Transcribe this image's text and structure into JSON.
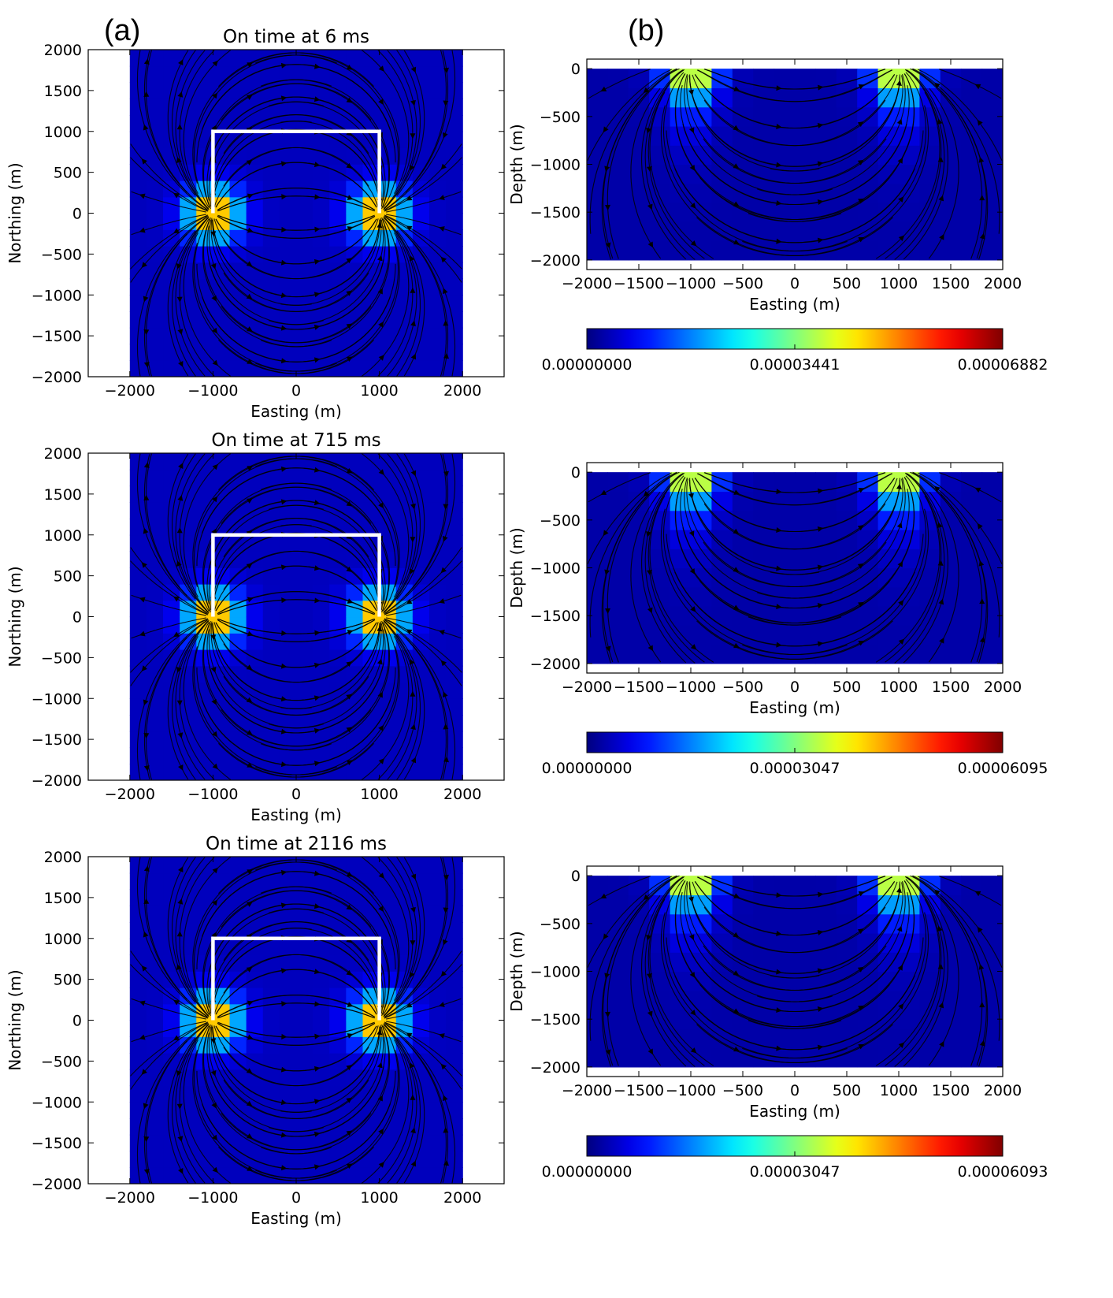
{
  "figure": {
    "panel_labels": [
      "(a)",
      "(b)"
    ]
  },
  "chart_data": [
    {
      "type": "heatmap",
      "panel": "(a)",
      "title": "On time at    6 ms",
      "xlabel": "Easting (m)",
      "ylabel": "Northing (m)",
      "xlim": [
        -2500,
        2500
      ],
      "ylim": [
        -2000,
        2000
      ],
      "xticks": [
        -2000,
        -1000,
        0,
        1000,
        2000
      ],
      "yticks": [
        -2000,
        -1500,
        -1000,
        -500,
        0,
        500,
        1000,
        1500,
        2000
      ],
      "extent": [
        -2000,
        2000,
        -2000,
        2000
      ],
      "streamlines": true,
      "loop_path": [
        [
          -1000,
          0
        ],
        [
          -1000,
          1000
        ],
        [
          1000,
          1000
        ],
        [
          1000,
          0
        ]
      ],
      "colors": {
        "loop": "#ffffff",
        "streamline": "#000000"
      }
    },
    {
      "type": "heatmap",
      "panel": "(b)",
      "xlabel": "Easting (m)",
      "ylabel": "Depth (m)",
      "xlim": [
        -2000,
        2000
      ],
      "ylim": [
        -2100,
        100
      ],
      "xticks": [
        -2000,
        -1500,
        -1000,
        -500,
        0,
        500,
        1000,
        1500,
        2000
      ],
      "yticks": [
        0,
        -500,
        -1000,
        -1500,
        -2000
      ],
      "extent": [
        -2000,
        2000,
        -2000,
        0
      ],
      "streamlines": true,
      "colorbar": {
        "min_label": "0.00000000",
        "mid_label": "0.00003441",
        "max_label": "0.00006882"
      }
    },
    {
      "type": "heatmap",
      "panel": "(a)",
      "title": "On time at  715 ms",
      "xlabel": "Easting (m)",
      "ylabel": "Northing (m)",
      "xlim": [
        -2500,
        2500
      ],
      "ylim": [
        -2000,
        2000
      ],
      "xticks": [
        -2000,
        -1000,
        0,
        1000,
        2000
      ],
      "yticks": [
        -2000,
        -1500,
        -1000,
        -500,
        0,
        500,
        1000,
        1500,
        2000
      ],
      "extent": [
        -2000,
        2000,
        -2000,
        2000
      ],
      "streamlines": true,
      "loop_path": [
        [
          -1000,
          0
        ],
        [
          -1000,
          1000
        ],
        [
          1000,
          1000
        ],
        [
          1000,
          0
        ]
      ]
    },
    {
      "type": "heatmap",
      "panel": "(b)",
      "xlabel": "Easting (m)",
      "ylabel": "Depth (m)",
      "xlim": [
        -2000,
        2000
      ],
      "ylim": [
        -2100,
        100
      ],
      "xticks": [
        -2000,
        -1500,
        -1000,
        -500,
        0,
        500,
        1000,
        1500,
        2000
      ],
      "yticks": [
        0,
        -500,
        -1000,
        -1500,
        -2000
      ],
      "extent": [
        -2000,
        2000,
        -2000,
        0
      ],
      "streamlines": true,
      "colorbar": {
        "min_label": "0.00000000",
        "mid_label": "0.00003047",
        "max_label": "0.00006095"
      }
    },
    {
      "type": "heatmap",
      "panel": "(a)",
      "title": "On time at 2116 ms",
      "xlabel": "Easting (m)",
      "ylabel": "Northing (m)",
      "xlim": [
        -2500,
        2500
      ],
      "ylim": [
        -2000,
        2000
      ],
      "xticks": [
        -2000,
        -1000,
        0,
        1000,
        2000
      ],
      "yticks": [
        -2000,
        -1500,
        -1000,
        -500,
        0,
        500,
        1000,
        1500,
        2000
      ],
      "extent": [
        -2000,
        2000,
        -2000,
        2000
      ],
      "streamlines": true,
      "loop_path": [
        [
          -1000,
          0
        ],
        [
          -1000,
          1000
        ],
        [
          1000,
          1000
        ],
        [
          1000,
          0
        ]
      ]
    },
    {
      "type": "heatmap",
      "panel": "(b)",
      "xlabel": "Easting (m)",
      "ylabel": "Depth (m)",
      "xlim": [
        -2000,
        2000
      ],
      "ylim": [
        -2100,
        100
      ],
      "xticks": [
        -2000,
        -1500,
        -1000,
        -500,
        0,
        500,
        1000,
        1500,
        2000
      ],
      "yticks": [
        0,
        -500,
        -1000,
        -1500,
        -2000
      ],
      "extent": [
        -2000,
        2000,
        -2000,
        0
      ],
      "streamlines": true,
      "colorbar": {
        "min_label": "0.00000000",
        "mid_label": "0.00003047",
        "max_label": "0.00006093"
      }
    }
  ]
}
